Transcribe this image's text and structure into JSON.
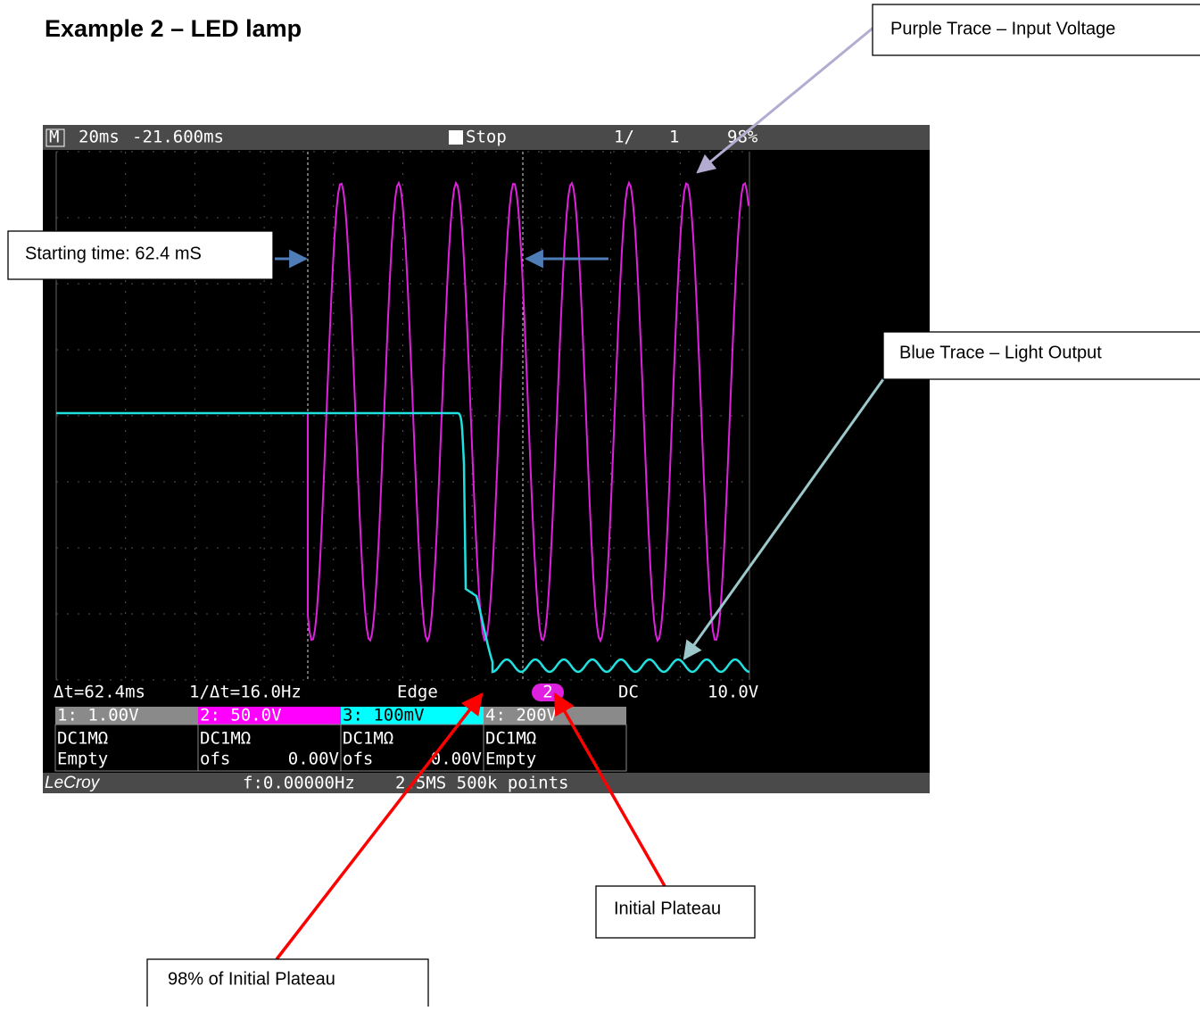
{
  "header": {
    "title": "Example 2 – LED lamp"
  },
  "callouts": [
    "Purple Trace – Input Voltage",
    "Starting time:  62.4 mS",
    "Blue Trace – Light Output",
    "Initial Plateau",
    "98% of Initial Plateau"
  ],
  "scope": {
    "top_bar": [
      "M",
      "20ms",
      "-21.600ms",
      "Stop",
      "1/",
      "1",
      "98%"
    ],
    "status_bar": [
      "Δt=62.4ms",
      "1/Δt=16.0Hz",
      "Edge",
      "2",
      "DC",
      "10.0V"
    ],
    "channels": [
      {
        "label": "1: 1.00V",
        "coupling": "DC1MΩ",
        "offset_label": "Empty",
        "offset_value": null
      },
      {
        "label": "2: 50.0V",
        "coupling": "DC1MΩ",
        "offset_label": "ofs",
        "offset_value": "0.00V"
      },
      {
        "label": "3: 100mV",
        "coupling": "DC1MΩ",
        "offset_label": "ofs",
        "offset_value": "0.00V"
      },
      {
        "label": "4: 200V",
        "coupling": "DC1MΩ",
        "offset_label": "Empty",
        "offset_value": null
      }
    ],
    "footer": [
      "LeCroy",
      "f:0.00000Hz",
      "2.5MS 500k points"
    ]
  }
}
